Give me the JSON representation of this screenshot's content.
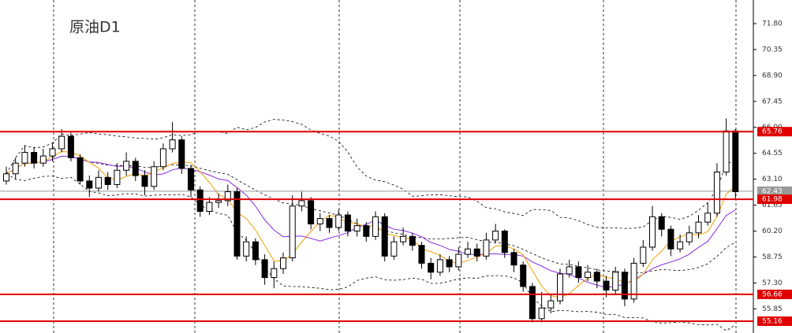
{
  "chart_data": {
    "type": "candlestick",
    "title": "原油D1",
    "open": [
      63.0,
      63.4,
      64.0,
      64.6,
      64.0,
      64.4,
      64.8,
      65.5,
      64.3,
      63.0,
      62.6,
      63.2,
      62.8,
      63.6,
      64.1,
      63.3,
      62.7,
      63.8,
      64.8,
      65.3,
      63.7,
      62.5,
      61.3,
      61.8,
      61.9,
      62.4,
      58.8,
      59.6,
      58.6,
      57.6,
      58.1,
      58.7,
      61.6,
      61.9,
      60.6,
      60.9,
      60.4,
      61.1,
      60.2,
      60.5,
      59.9,
      61.0,
      58.8,
      59.6,
      59.9,
      59.4,
      58.4,
      57.9,
      58.6,
      58.2,
      58.9,
      59.2,
      58.8,
      59.7,
      60.2,
      59.0,
      58.3,
      57.1,
      55.3,
      55.9,
      56.3,
      57.8,
      58.2,
      57.6,
      57.9,
      57.4,
      56.9,
      57.9,
      56.4,
      58.4,
      59.3,
      61.0,
      60.3,
      59.2,
      59.6,
      60.1,
      60.7,
      61.2,
      63.5,
      65.8
    ],
    "high": [
      63.8,
      64.3,
      65.0,
      64.9,
      64.8,
      65.1,
      65.9,
      65.7,
      64.5,
      63.3,
      63.6,
      63.5,
      64.0,
      64.6,
      64.3,
      63.6,
      64.1,
      65.1,
      66.3,
      65.5,
      63.9,
      62.7,
      62.1,
      62.3,
      62.8,
      62.6,
      59.9,
      59.8,
      58.9,
      58.5,
      59.0,
      62.2,
      62.4,
      62.1,
      61.2,
      61.1,
      61.4,
      61.3,
      60.9,
      60.7,
      61.3,
      61.2,
      59.9,
      60.4,
      60.1,
      59.6,
      58.7,
      58.9,
      58.8,
      59.3,
      59.6,
      59.5,
      60.1,
      60.6,
      60.3,
      59.2,
      58.5,
      57.3,
      56.8,
      56.6,
      58.1,
      58.6,
      58.5,
      58.3,
      58.1,
      57.7,
      58.2,
      58.1,
      58.7,
      59.7,
      61.6,
      61.2,
      60.5,
      60.0,
      60.5,
      61.1,
      61.8,
      64.0,
      66.5,
      65.9
    ],
    "low": [
      62.8,
      63.1,
      63.8,
      63.7,
      63.8,
      64.1,
      64.6,
      64.1,
      62.8,
      62.1,
      62.4,
      62.5,
      62.6,
      63.3,
      63.0,
      62.2,
      62.5,
      63.6,
      64.6,
      63.4,
      62.1,
      61.0,
      61.1,
      61.5,
      61.6,
      58.6,
      58.5,
      58.3,
      57.2,
      57.0,
      57.8,
      58.5,
      61.3,
      60.3,
      60.2,
      60.1,
      60.2,
      59.9,
      59.9,
      59.6,
      59.7,
      58.5,
      58.6,
      59.4,
      59.1,
      58.1,
      57.5,
      57.7,
      57.9,
      58.0,
      58.7,
      58.5,
      58.6,
      59.5,
      58.7,
      57.9,
      56.8,
      55.1,
      55.1,
      55.6,
      56.1,
      57.6,
      57.3,
      57.4,
      57.0,
      56.5,
      56.7,
      56.0,
      56.2,
      58.2,
      59.1,
      59.9,
      58.8,
      59.0,
      59.4,
      59.8,
      60.5,
      61.0,
      63.3,
      62.0
    ],
    "close": [
      63.4,
      64.0,
      64.6,
      64.0,
      64.4,
      64.8,
      65.5,
      64.3,
      63.0,
      62.6,
      63.2,
      62.8,
      63.6,
      64.1,
      63.3,
      62.7,
      63.8,
      64.8,
      65.3,
      63.7,
      62.5,
      61.3,
      61.8,
      61.9,
      62.4,
      58.8,
      59.6,
      58.6,
      57.6,
      58.1,
      58.7,
      61.6,
      61.9,
      60.6,
      60.9,
      60.4,
      61.1,
      60.2,
      60.5,
      59.9,
      61.0,
      58.8,
      59.6,
      59.9,
      59.4,
      58.4,
      57.9,
      58.6,
      58.2,
      58.9,
      59.2,
      58.8,
      59.7,
      60.2,
      59.0,
      58.3,
      57.1,
      55.3,
      55.9,
      56.3,
      57.8,
      58.2,
      57.6,
      57.9,
      57.4,
      56.9,
      57.9,
      56.4,
      58.4,
      59.3,
      61.0,
      60.3,
      59.2,
      59.6,
      60.1,
      60.7,
      61.2,
      63.5,
      65.8,
      62.4
    ],
    "up_color": "#ffffff",
    "down_color": "#000000",
    "ylim": [
      54.5,
      73.12
    ],
    "yticks": [
      {
        "value": 71.8,
        "label": "71.80"
      },
      70.35,
      {
        "value": 68.9,
        "label": "68.90"
      },
      67.45,
      {
        "value": 66,
        "label": "66.00"
      },
      64.55,
      {
        "value": 63.1,
        "label": "63.10"
      },
      61.65,
      {
        "value": 60.2,
        "label": "60.20"
      },
      58.75,
      {
        "value": 57.3,
        "label": "57.30"
      },
      55.85
    ],
    "levels": [
      65.76,
      61.98,
      56.66,
      55.16
    ],
    "level_color": "#e00000",
    "last_price": 62.43
  }
}
